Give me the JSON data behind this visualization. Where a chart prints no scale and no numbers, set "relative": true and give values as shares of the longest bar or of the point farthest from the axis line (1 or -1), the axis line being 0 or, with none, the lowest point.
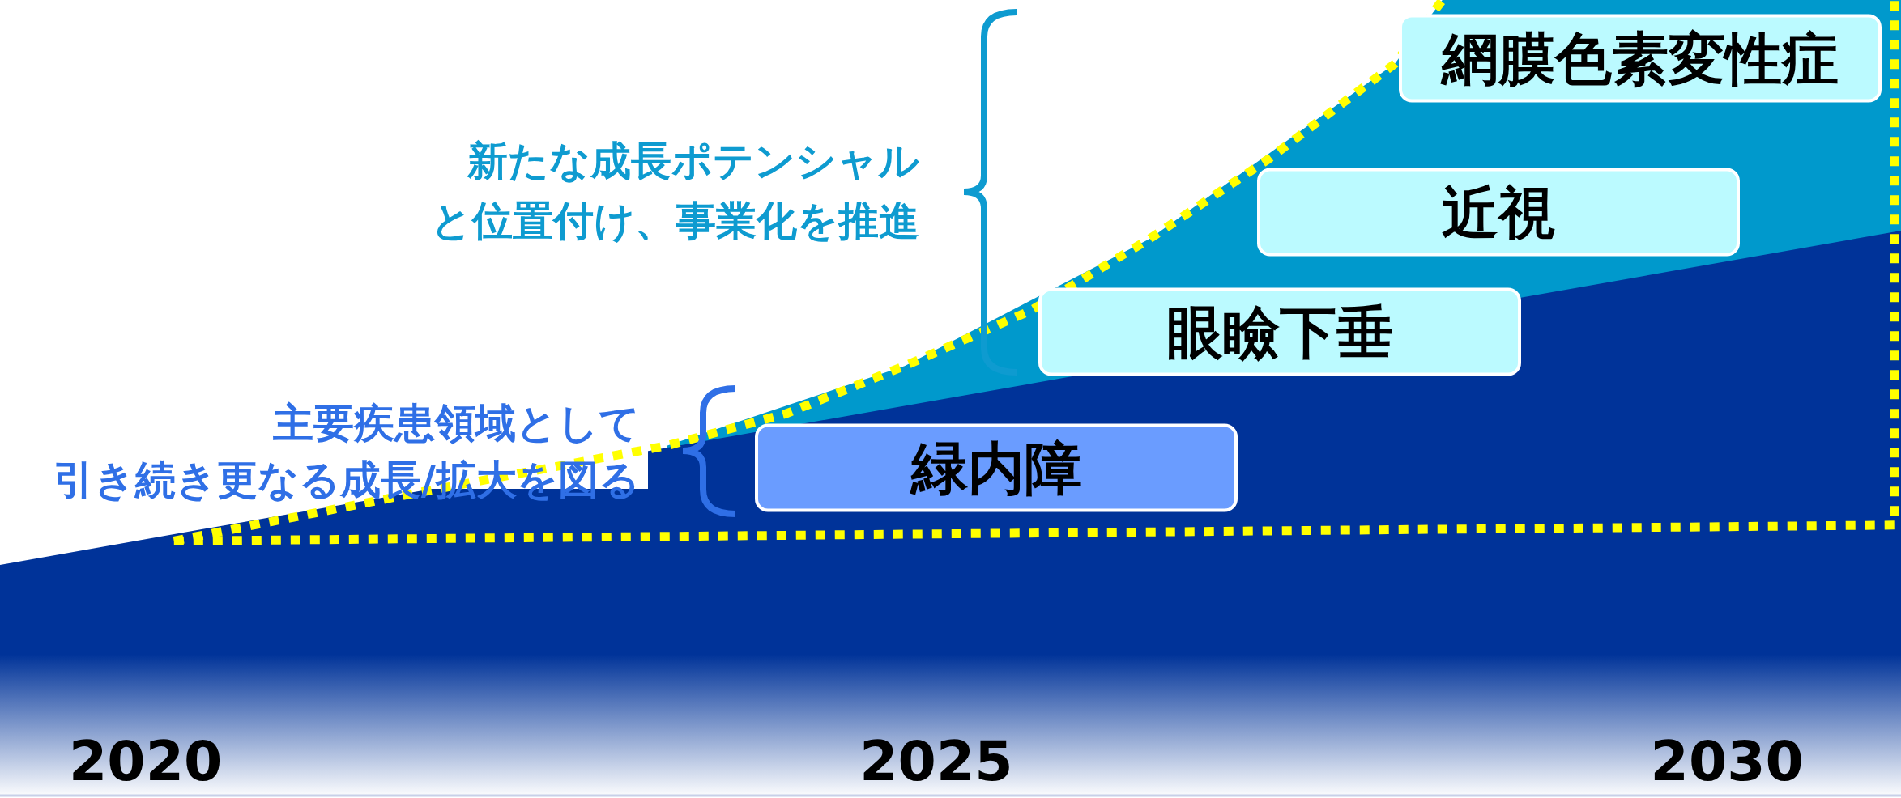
{
  "chart_data": {
    "type": "area",
    "relative": true,
    "xlim": [
      2019.08,
      2031.1
    ],
    "xticks": [
      2020,
      2025,
      2030
    ],
    "line_style": "dotted",
    "series": [
      {
        "color": "#0099cc",
        "x": [
          2023.3,
          2024.8,
          2026.35,
          2027.9,
          2028.2,
          2031.1
        ],
        "values": [
          0.44,
          0.54,
          0.7,
          0.92,
          1,
          1
        ]
      },
      {
        "color": "#003399",
        "x": [
          2019.08,
          2031.1
        ],
        "values": [
          0.29,
          0.71
        ]
      },
      {
        "type": "line",
        "color": "#ffff00",
        "x": [
          2020.18,
          2021.7,
          2023.3,
          2024.05,
          2024.8,
          2025.6,
          2026.35,
          2027.1,
          2027.9,
          2028.2
        ],
        "values": [
          0.32,
          0.38,
          0.44,
          0.48,
          0.54,
          0.61,
          0.7,
          0.8,
          0.92,
          1
        ]
      },
      {
        "type": "line",
        "color": "#ffff00",
        "x": [
          2020.18,
          2031.06,
          2031.06
        ],
        "values": [
          0.32,
          0.34,
          1
        ]
      }
    ],
    "annotations": [
      "新たな成長ポテンシャルと位置付け、事業化を推進",
      "主要疾患領域として引き続き更なる成長/拡大を図る",
      "緑内障",
      "眼瞼下垂",
      "近視",
      "網膜色素変性症"
    ]
  }
}
